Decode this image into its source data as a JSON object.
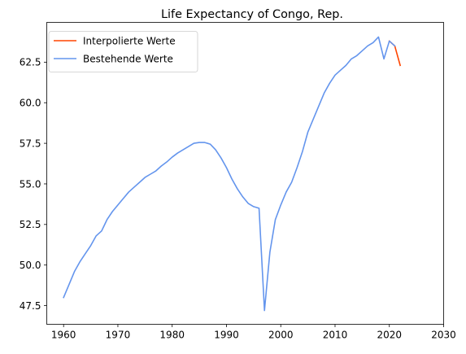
{
  "chart_data": {
    "type": "line",
    "title": "Life Expectancy of Congo, Rep.",
    "xlabel": "",
    "ylabel": "",
    "xlim": [
      1956.9,
      2030
    ],
    "ylim": [
      46.35,
      64.95
    ],
    "xticks": [
      1960,
      1970,
      1980,
      1990,
      2000,
      2010,
      2020,
      2030
    ],
    "yticks": [
      47.5,
      50.0,
      52.5,
      55.0,
      57.5,
      60.0,
      62.5
    ],
    "ytick_labels": [
      "47.5",
      "50.0",
      "52.5",
      "55.0",
      "57.5",
      "60.0",
      "62.5"
    ],
    "grid": false,
    "legend_position": "top-left",
    "series": [
      {
        "name": "Interpolierte Werte",
        "color": "#ff4500",
        "x": [
          2020,
          2021,
          2022
        ],
        "y": [
          63.8,
          63.5,
          62.3
        ]
      },
      {
        "name": "Bestehende Werte",
        "color": "#6495ed",
        "x": [
          1960,
          1961,
          1962,
          1963,
          1964,
          1965,
          1966,
          1967,
          1968,
          1969,
          1970,
          1971,
          1972,
          1973,
          1974,
          1975,
          1976,
          1977,
          1978,
          1979,
          1980,
          1981,
          1982,
          1983,
          1984,
          1985,
          1986,
          1987,
          1988,
          1989,
          1990,
          1991,
          1992,
          1993,
          1994,
          1995,
          1996,
          1997,
          1998,
          1999,
          2000,
          2001,
          2002,
          2003,
          2004,
          2005,
          2006,
          2007,
          2008,
          2009,
          2010,
          2011,
          2012,
          2013,
          2014,
          2015,
          2016,
          2017,
          2018,
          2019,
          2020,
          2021
        ],
        "y": [
          48.0,
          48.8,
          49.6,
          50.2,
          50.7,
          51.2,
          51.8,
          52.1,
          52.8,
          53.3,
          53.7,
          54.1,
          54.5,
          54.8,
          55.1,
          55.4,
          55.6,
          55.8,
          56.1,
          56.35,
          56.65,
          56.9,
          57.1,
          57.3,
          57.5,
          57.55,
          57.55,
          57.45,
          57.1,
          56.6,
          56.0,
          55.3,
          54.7,
          54.2,
          53.8,
          53.6,
          53.5,
          47.2,
          50.8,
          52.8,
          53.7,
          54.5,
          55.1,
          56.0,
          57.0,
          58.2,
          59.0,
          59.8,
          60.6,
          61.2,
          61.7,
          62.0,
          62.3,
          62.7,
          62.9,
          63.2,
          63.5,
          63.7,
          64.05,
          62.7,
          63.8,
          63.5
        ]
      }
    ]
  }
}
